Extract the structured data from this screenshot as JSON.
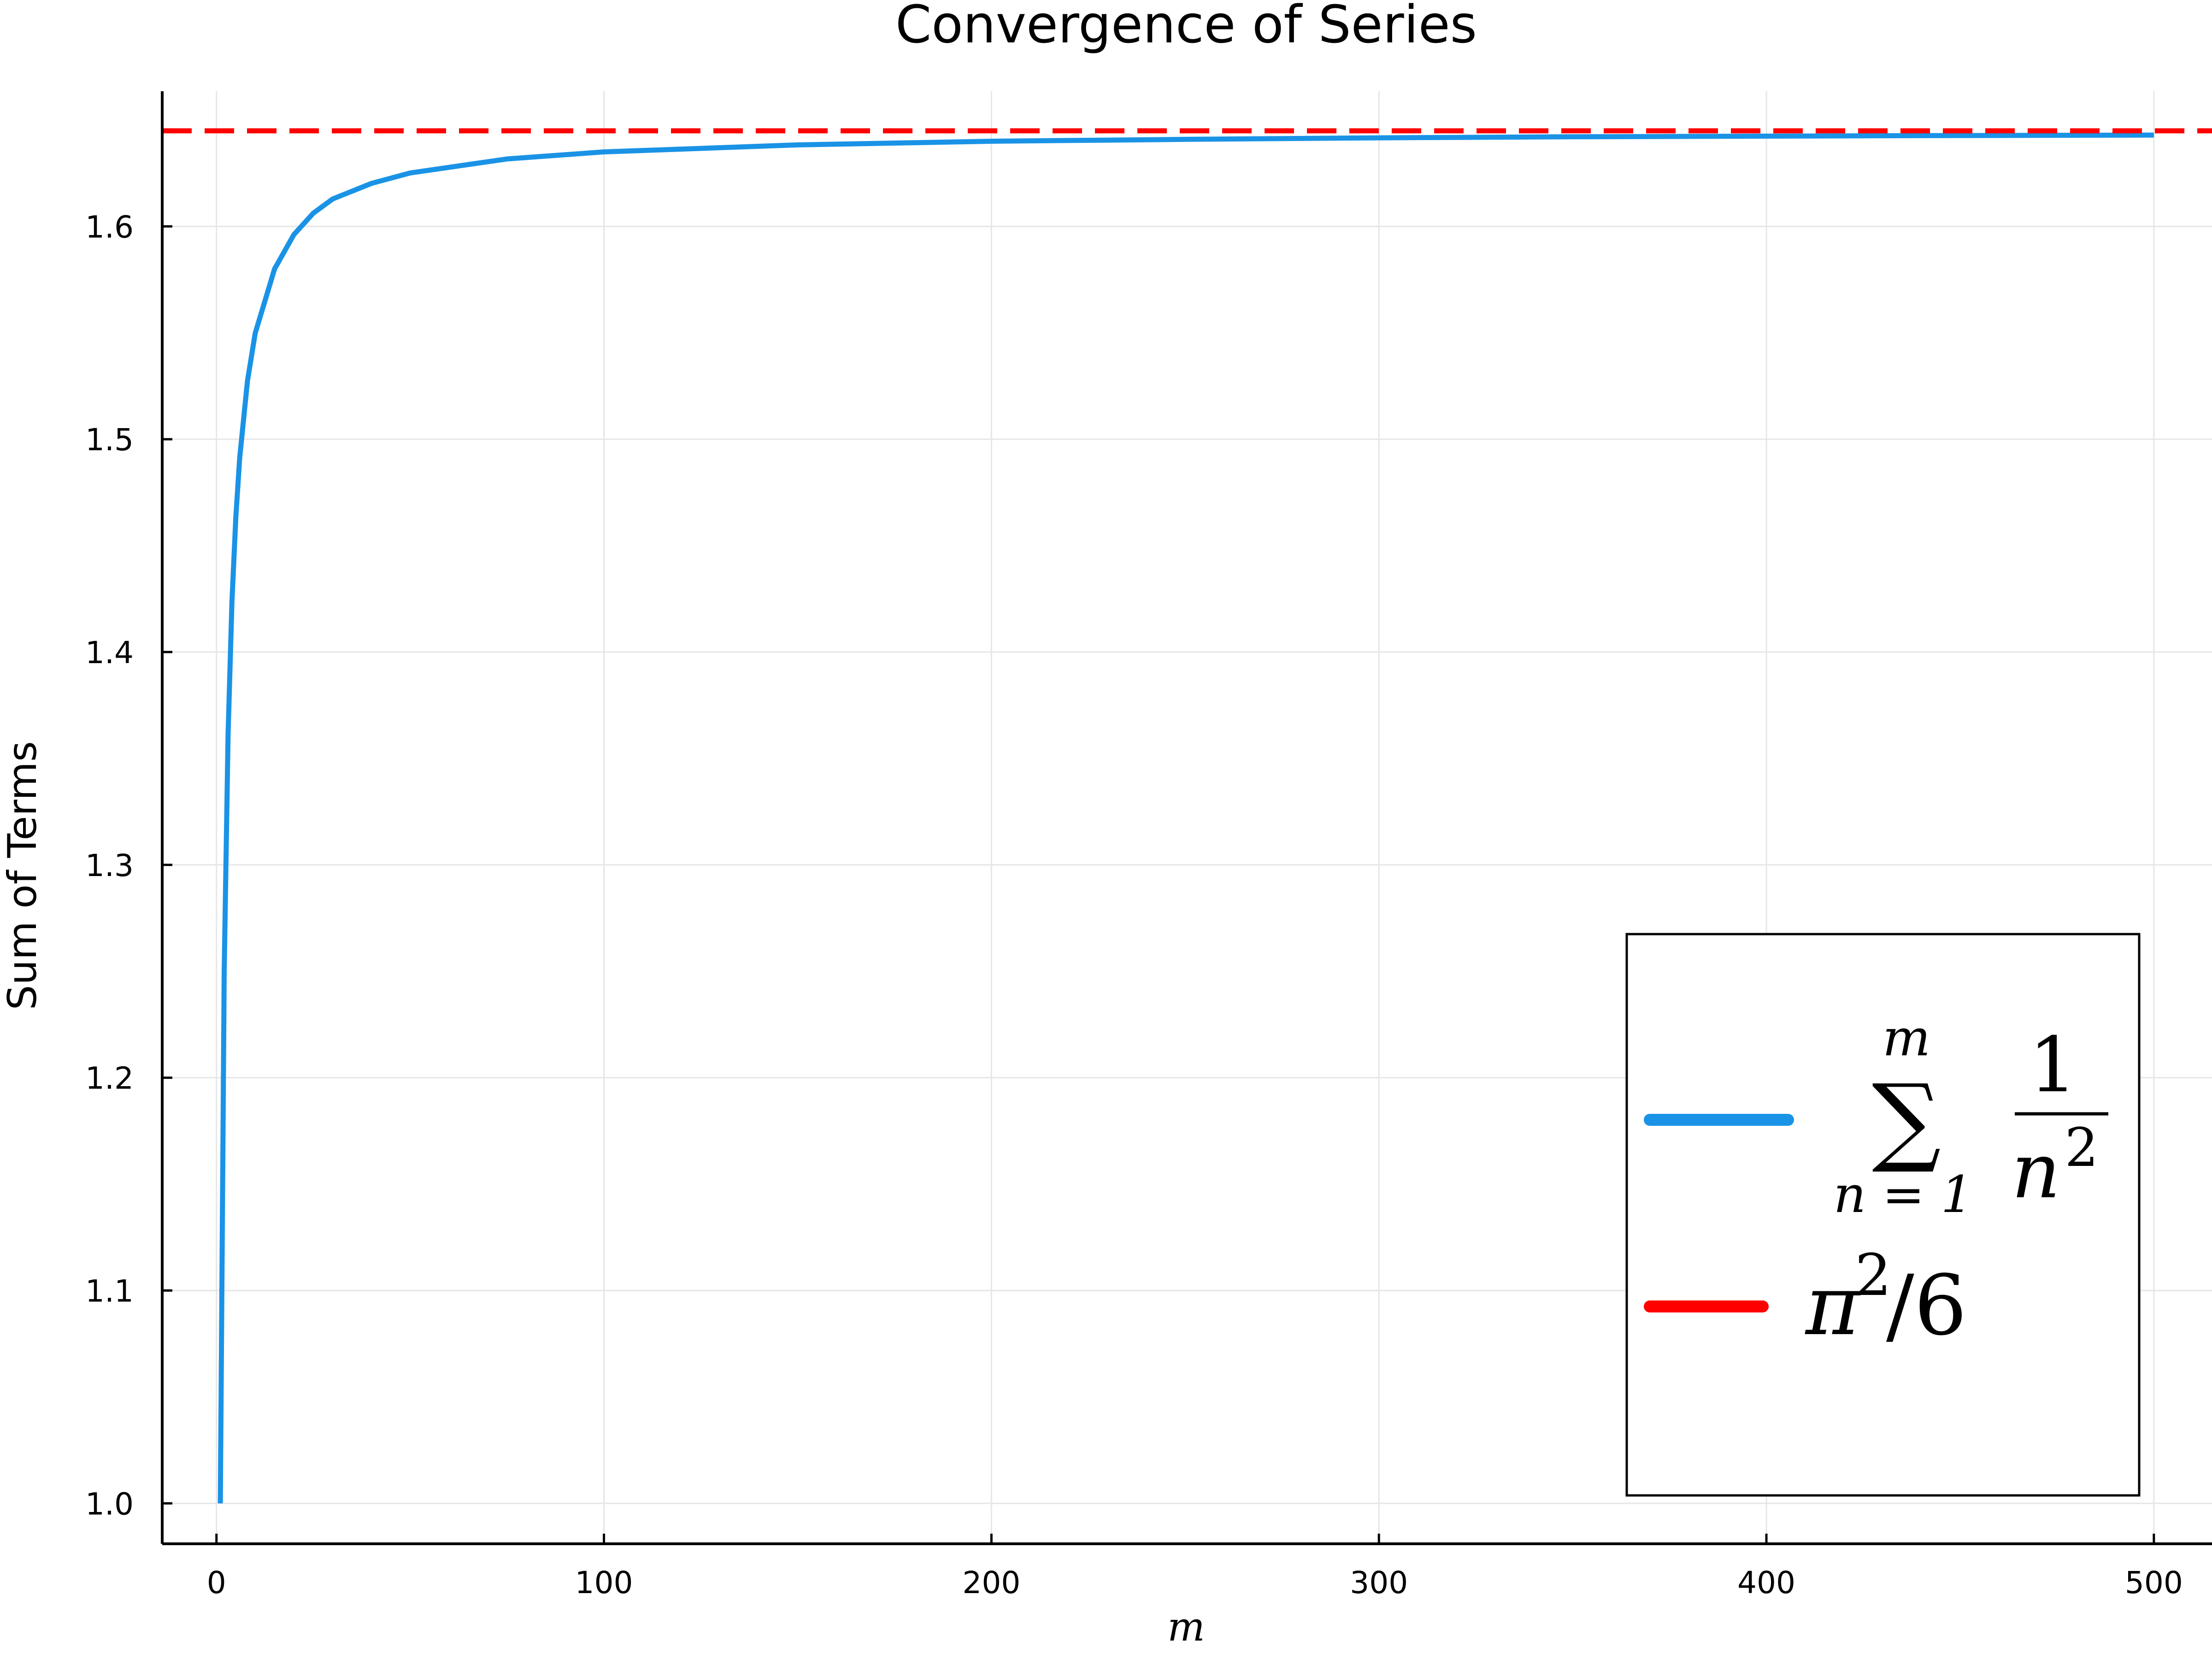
{
  "chart_data": {
    "type": "line",
    "title": "Convergence of Series",
    "xlabel": "m",
    "ylabel": "Sum of Terms",
    "xlim": [
      -14,
      515
    ],
    "ylim": [
      0.981,
      1.6635
    ],
    "x_ticks": [
      0,
      100,
      200,
      300,
      400,
      500
    ],
    "x_tick_labels": [
      "0",
      "100",
      "200",
      "300",
      "400",
      "500"
    ],
    "y_ticks": [
      1.0,
      1.1,
      1.2,
      1.3,
      1.4,
      1.5,
      1.6
    ],
    "y_tick_labels": [
      "1.0",
      "1.1",
      "1.2",
      "1.3",
      "1.4",
      "1.5",
      "1.6"
    ],
    "grid": true,
    "legend_position": "bottom-right",
    "series": [
      {
        "name": "sum_{n=1}^{m} 1/n^2",
        "color": "#1a93e6",
        "style": "solid",
        "x": [
          1,
          2,
          3,
          4,
          5,
          6,
          8,
          10,
          15,
          20,
          25,
          30,
          40,
          50,
          75,
          100,
          150,
          200,
          250,
          300,
          350,
          400,
          450,
          500
        ],
        "y": [
          1.0,
          1.25,
          1.3611,
          1.4236,
          1.4636,
          1.4914,
          1.5274,
          1.5498,
          1.58,
          1.5962,
          1.6062,
          1.6129,
          1.6202,
          1.6251,
          1.6317,
          1.635,
          1.6383,
          1.64,
          1.6409,
          1.6416,
          1.6421,
          1.6424,
          1.6427,
          1.6429
        ]
      },
      {
        "name": "π²/6",
        "color": "#ff0000",
        "style": "dashed",
        "x": [
          -14,
          515
        ],
        "y": [
          1.6449,
          1.6449
        ]
      }
    ],
    "legend": {
      "entries": [
        {
          "upper": "m",
          "symbol": "∑",
          "lower": "n = 1",
          "numerator": "1",
          "denominator": "n",
          "exponent": "2",
          "color": "#1a93e6"
        },
        {
          "base": "π",
          "exponent": "2",
          "rest": "/6",
          "color": "#ff0000"
        }
      ]
    }
  }
}
